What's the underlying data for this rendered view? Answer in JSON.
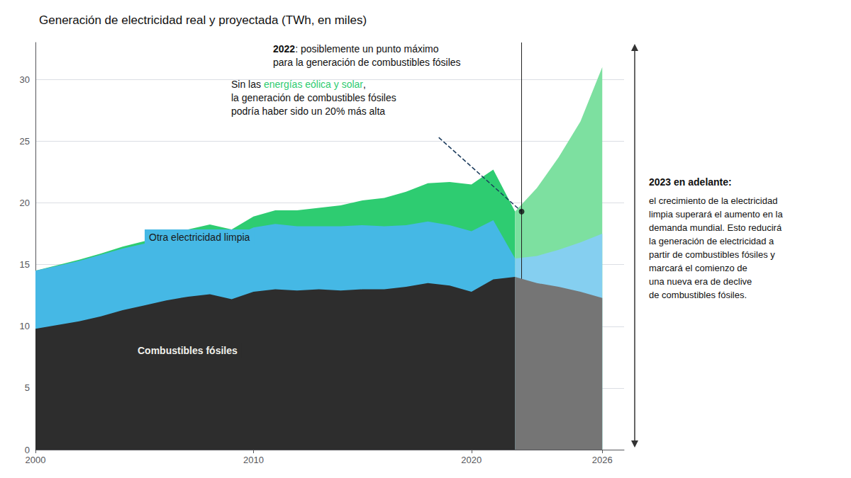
{
  "chart_data": {
    "type": "area",
    "stacked": true,
    "title": "Generación de electricidad real y proyectada (TWh, en miles)",
    "xlim": [
      2000,
      2027
    ],
    "xticks": [
      2000,
      2010,
      2020,
      2026
    ],
    "ylim": [
      0,
      33
    ],
    "yticks": [
      0,
      5,
      10,
      15,
      20,
      25,
      30
    ],
    "grid": true,
    "series": [
      {
        "name": "Combustibles fósiles",
        "color": "#2d2d2d",
        "x": [
          2000,
          2001,
          2002,
          2003,
          2004,
          2005,
          2006,
          2007,
          2008,
          2009,
          2010,
          2011,
          2012,
          2013,
          2014,
          2015,
          2016,
          2017,
          2018,
          2019,
          2020,
          2021,
          2022
        ],
        "values": [
          9.8,
          10.1,
          10.4,
          10.8,
          11.3,
          11.7,
          12.1,
          12.4,
          12.6,
          12.2,
          12.8,
          13.0,
          12.9,
          13.0,
          12.9,
          13.0,
          13.0,
          13.2,
          13.5,
          13.3,
          12.8,
          13.8,
          14.0
        ]
      },
      {
        "name": "Otra electricidad limpia",
        "color": "#45b8e5",
        "x": [
          2000,
          2001,
          2002,
          2003,
          2004,
          2005,
          2006,
          2007,
          2008,
          2009,
          2010,
          2011,
          2012,
          2013,
          2014,
          2015,
          2016,
          2017,
          2018,
          2019,
          2020,
          2021,
          2022
        ],
        "values": [
          4.7,
          4.8,
          4.9,
          5.0,
          5.0,
          5.0,
          5.0,
          5.0,
          5.1,
          5.0,
          5.2,
          5.3,
          5.2,
          5.1,
          5.2,
          5.2,
          5.1,
          5.0,
          5.0,
          4.9,
          4.9,
          4.8,
          1.5
        ]
      },
      {
        "name": "energías eólica y solar",
        "color": "#2ecc71",
        "x": [
          2000,
          2001,
          2002,
          2003,
          2004,
          2005,
          2006,
          2007,
          2008,
          2009,
          2010,
          2011,
          2012,
          2013,
          2014,
          2015,
          2016,
          2017,
          2018,
          2019,
          2020,
          2021,
          2022
        ],
        "values": [
          0.0,
          0.05,
          0.1,
          0.1,
          0.15,
          0.2,
          0.3,
          0.45,
          0.55,
          0.65,
          0.9,
          1.1,
          1.3,
          1.5,
          1.7,
          2.0,
          2.3,
          2.7,
          3.1,
          3.5,
          3.8,
          4.1,
          3.8
        ]
      },
      {
        "name": "Combustibles fósiles",
        "color": "#757575",
        "x": [
          2022,
          2023,
          2024,
          2025,
          2026
        ],
        "values": [
          14.0,
          13.5,
          13.2,
          12.8,
          12.3
        ]
      },
      {
        "name": "Otra electricidad limpia",
        "color": "#85cff0",
        "x": [
          2022,
          2023,
          2024,
          2025,
          2026
        ],
        "values": [
          1.5,
          2.2,
          3.0,
          4.0,
          5.2
        ]
      },
      {
        "name": "energías eólica y solar",
        "color": "#7de0a0",
        "x": [
          2022,
          2023,
          2024,
          2025,
          2026
        ],
        "values": [
          3.8,
          5.5,
          7.5,
          9.8,
          13.5
        ]
      },
      {
        "type": "line",
        "line_style": "dashed",
        "color": "#1a3a5c",
        "x": [
          2018.5,
          2022.3
        ],
        "values": [
          25.3,
          19.3
        ]
      },
      {
        "type": "scatter",
        "marker": "circle",
        "color": "#111111",
        "x": [
          2022.3
        ],
        "values": [
          19.3
        ]
      }
    ],
    "vline": {
      "x": 2022.3,
      "color": "#222222"
    },
    "annotations": [
      {
        "text": "Combustibles fósiles"
      },
      {
        "text": "Otra electricidad limpia"
      },
      {
        "bold": "2022",
        "text": ": posiblemente un punto máximo\npara la generación de combustibles fósiles"
      },
      {
        "text": "Sin las energías eólica y solar,\nla generación de combustibles fósiles\npodría haber sido un 20% más alta"
      },
      {
        "bold": "2023 en adelante:",
        "text": "el crecimiento de la electricidad\nlimpia superará el aumento en la\ndemanda mundial. Esto reducirá\nla generación de electricidad a\npartir de combustibles fósiles y\nmarcará el comienzo de\nuna nueva era de declive\nde combustibles fósiles."
      }
    ]
  }
}
